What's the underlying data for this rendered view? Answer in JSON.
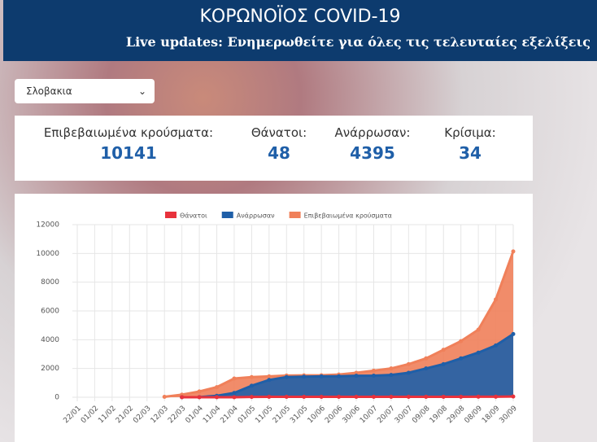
{
  "header": {
    "title": "ΚΟΡΩΝΟΪΟΣ COVID-19",
    "subtitle": "Live updates: Ενημερωθείτε για όλες τις τελευταίες εξελίξεις"
  },
  "country_select": {
    "value": "Σλοβακια"
  },
  "stats": [
    {
      "label": "Επιβεβαιωμένα κρούσματα:",
      "value": 10141
    },
    {
      "label": "Θάνατοι:",
      "value": 48
    },
    {
      "label": "Ανάρρωσαν:",
      "value": 4395
    },
    {
      "label": "Κρίσιμα:",
      "value": 34
    }
  ],
  "chart_data": {
    "type": "area",
    "categories": [
      "22/01",
      "01/02",
      "11/02",
      "21/02",
      "02/03",
      "12/03",
      "22/03",
      "01/04",
      "11/04",
      "21/04",
      "01/05",
      "11/05",
      "21/05",
      "31/05",
      "10/06",
      "20/06",
      "30/06",
      "10/07",
      "20/07",
      "30/07",
      "09/08",
      "19/08",
      "29/08",
      "08/09",
      "18/09",
      "30/09"
    ],
    "series": [
      {
        "name": "Θάνατοι",
        "color": "#e8323c",
        "values": [
          null,
          null,
          null,
          null,
          null,
          null,
          0,
          0,
          1,
          2,
          23,
          26,
          28,
          28,
          28,
          28,
          28,
          28,
          28,
          30,
          31,
          31,
          31,
          36,
          38,
          48
        ]
      },
      {
        "name": "Ανάρρωσαν",
        "color": "#1f5fa8",
        "values": [
          null,
          null,
          null,
          null,
          null,
          null,
          0,
          10,
          100,
          300,
          800,
          1200,
          1400,
          1430,
          1450,
          1460,
          1490,
          1500,
          1550,
          1700,
          2000,
          2300,
          2700,
          3100,
          3600,
          4395
        ]
      },
      {
        "name": "Επιβεβαιωμένα κρούσματα",
        "color": "#f0805a",
        "values": [
          null,
          null,
          null,
          null,
          null,
          30,
          180,
          400,
          700,
          1300,
          1400,
          1450,
          1510,
          1520,
          1530,
          1580,
          1700,
          1850,
          2000,
          2300,
          2700,
          3300,
          3900,
          4700,
          6800,
          10141
        ]
      }
    ],
    "ylim": [
      0,
      12000
    ],
    "yticks": [
      0,
      2000,
      4000,
      6000,
      8000,
      10000,
      12000
    ],
    "grid": true
  }
}
